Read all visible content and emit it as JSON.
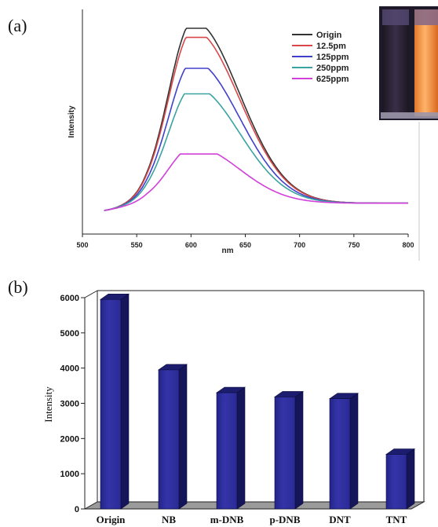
{
  "chart_data": [
    {
      "panel_label": "(a)",
      "type": "line",
      "xlabel": "nm",
      "ylabel": "Intensity",
      "xlim": [
        500,
        800
      ],
      "xticks": [
        500,
        550,
        600,
        650,
        700,
        750,
        800
      ],
      "ylim": [
        0,
        1
      ],
      "y_tick_labels": "none",
      "legend_position": "top-right",
      "series": [
        {
          "name": "Origin",
          "color": "#333333",
          "peak": 1.0
        },
        {
          "name": "12.5pm",
          "color": "#d94848",
          "peak": 0.95
        },
        {
          "name": "125ppm",
          "color": "#4040cc",
          "peak": 0.78
        },
        {
          "name": "250ppm",
          "color": "#3aa3a0",
          "peak": 0.64
        },
        {
          "name": "625ppm",
          "color": "#d040d8",
          "peak": 0.31
        }
      ],
      "curve_model": {
        "x_start": 520,
        "x_end": 800,
        "peak_x": 602,
        "baseline": 0.0,
        "tail_at_800": 0.04
      },
      "inset": "photo of two cuvettes: dark (left) and orange fluorescent (right)"
    },
    {
      "panel_label": "(b)",
      "type": "bar",
      "xlabel": "",
      "ylabel": "Intensity",
      "ylim": [
        0,
        6000
      ],
      "yticks": [
        0,
        1000,
        2000,
        3000,
        4000,
        5000,
        6000
      ],
      "categories": [
        "Origin",
        "NB",
        "m-DNB",
        "p-DNB",
        "DNT",
        "TNT"
      ],
      "values": [
        5950,
        3950,
        3300,
        3180,
        3130,
        1550
      ],
      "bar_color": "#2e2e9c",
      "style": "3d"
    }
  ]
}
